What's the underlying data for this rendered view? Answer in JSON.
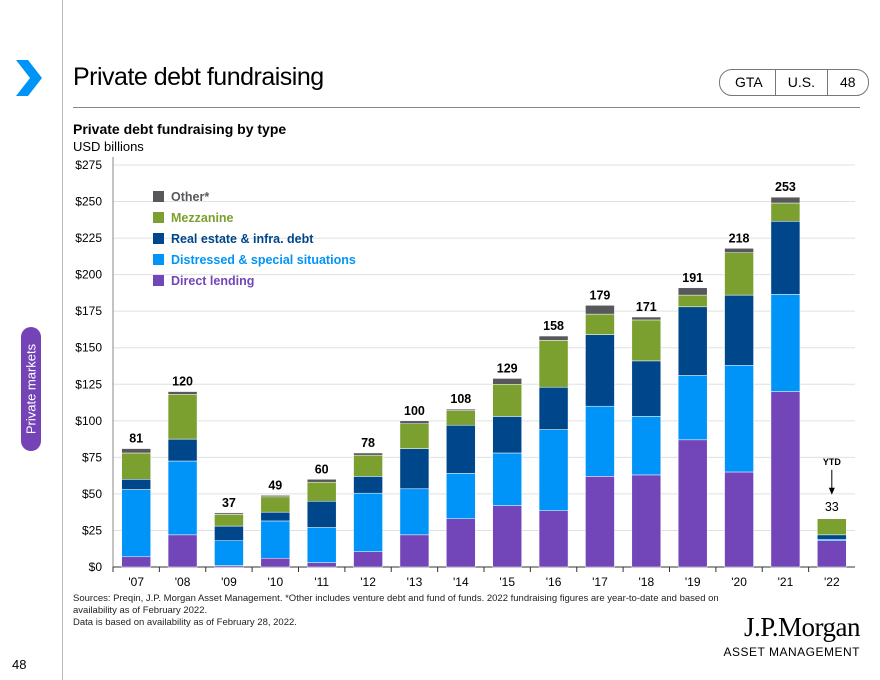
{
  "header": {
    "title": "Private debt fundraising",
    "tags": [
      "GTA",
      "U.S.",
      "48"
    ]
  },
  "side_tab": "Private markets",
  "page_number": "48",
  "footnotes": [
    "Sources: Preqin, J.P. Morgan Asset Management. *Other includes venture debt and fund of funds. 2022 fundraising figures are year-to-date and based on availability as of February 2022.",
    "Data is based on availability as of February 28, 2022."
  ],
  "logo": {
    "name": "J.P.Morgan",
    "sub": "ASSET MANAGEMENT"
  },
  "colors": {
    "direct": "#7245b9",
    "distressed": "#0094f8",
    "realestate": "#00468b",
    "mezzanine": "#7ba030",
    "other": "#56585b",
    "accent": "#0094f8"
  },
  "chart_data": {
    "type": "bar",
    "stacked": true,
    "title": "Private debt fundraising by type",
    "ylabel": "USD billions",
    "xlabel": "",
    "ylim": [
      0,
      275
    ],
    "yticks": [
      "$0",
      "$25",
      "$50",
      "$75",
      "$100",
      "$125",
      "$150",
      "$175",
      "$200",
      "$225",
      "$250",
      "$275"
    ],
    "grid": true,
    "legend_position": "top-left",
    "categories": [
      "'07",
      "'08",
      "'09",
      "'10",
      "'11",
      "'12",
      "'13",
      "'14",
      "'15",
      "'16",
      "'17",
      "'18",
      "'19",
      "'20",
      "'21",
      "'22"
    ],
    "totals": [
      "81",
      "120",
      "37",
      "49",
      "60",
      "78",
      "100",
      "108",
      "129",
      "158",
      "179",
      "171",
      "191",
      "218",
      "253",
      "33"
    ],
    "annotation": "YTD",
    "series": [
      {
        "name": "Direct lending",
        "key": "direct",
        "values": [
          7,
          22,
          1,
          6,
          3,
          10.5,
          22,
          33,
          42,
          38.5,
          62,
          63,
          87,
          65,
          120,
          18
        ]
      },
      {
        "name": "Distressed & special situations",
        "key": "distressed",
        "values": [
          46,
          50.5,
          17,
          25.5,
          24,
          40,
          31.5,
          31,
          36,
          55.5,
          48,
          40,
          44,
          73,
          66.5,
          1
        ]
      },
      {
        "name": "Real estate & infra. debt",
        "key": "realestate",
        "values": [
          7,
          15,
          10,
          6,
          18,
          11.5,
          27.5,
          33,
          25,
          29,
          49,
          38,
          47,
          48,
          50,
          3
        ]
      },
      {
        "name": "Mezzanine",
        "key": "mezzanine",
        "values": [
          18,
          30.5,
          8,
          10.5,
          13,
          14.5,
          17,
          10,
          22,
          32,
          14,
          28,
          8,
          29,
          12.5,
          11
        ]
      },
      {
        "name": "Other*",
        "key": "other",
        "values": [
          3,
          2,
          1,
          1,
          2,
          1.5,
          2,
          1,
          4,
          3,
          6,
          2,
          5,
          3,
          4,
          0
        ]
      }
    ]
  }
}
